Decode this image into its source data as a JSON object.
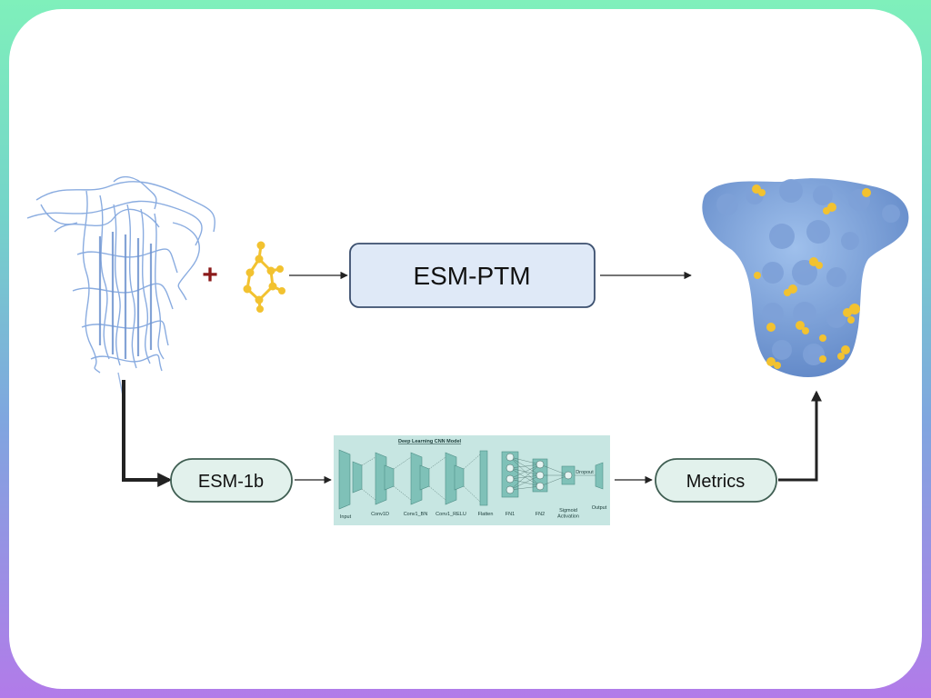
{
  "colors": {
    "border_top": "#7ff0bb",
    "border_bottom": "#b27be9",
    "protein_blue": "#84a8df",
    "ligand_yellow": "#f2c230",
    "plus_red": "#8b1a1a",
    "esmptm_fill": "#dfe9f7",
    "esmptm_stroke": "#3b4f6e",
    "pill_fill": "#e2f1ec",
    "pill_stroke": "#3f5e52",
    "cnn_panel": "#c7e6e2",
    "cnn_layer": "#7fc1b8",
    "arrow": "#222222"
  },
  "icons": {
    "input_protein": "protein-ribbon-icon",
    "ligand": "molecule-icon",
    "output_protein": "protein-surface-icon"
  },
  "labels": {
    "plus": "+",
    "esm_ptm": "ESM-PTM",
    "esm_1b": "ESM-1b",
    "metrics": "Metrics"
  },
  "cnn": {
    "title": "Deep Learning CNN Model",
    "layers": [
      "Input",
      "Conv1D",
      "Conv1_BN",
      "Conv1_RELU",
      "Flatten",
      "FN1",
      "FN2",
      "Sigmoid Activation",
      "Dropout",
      "Output"
    ]
  }
}
